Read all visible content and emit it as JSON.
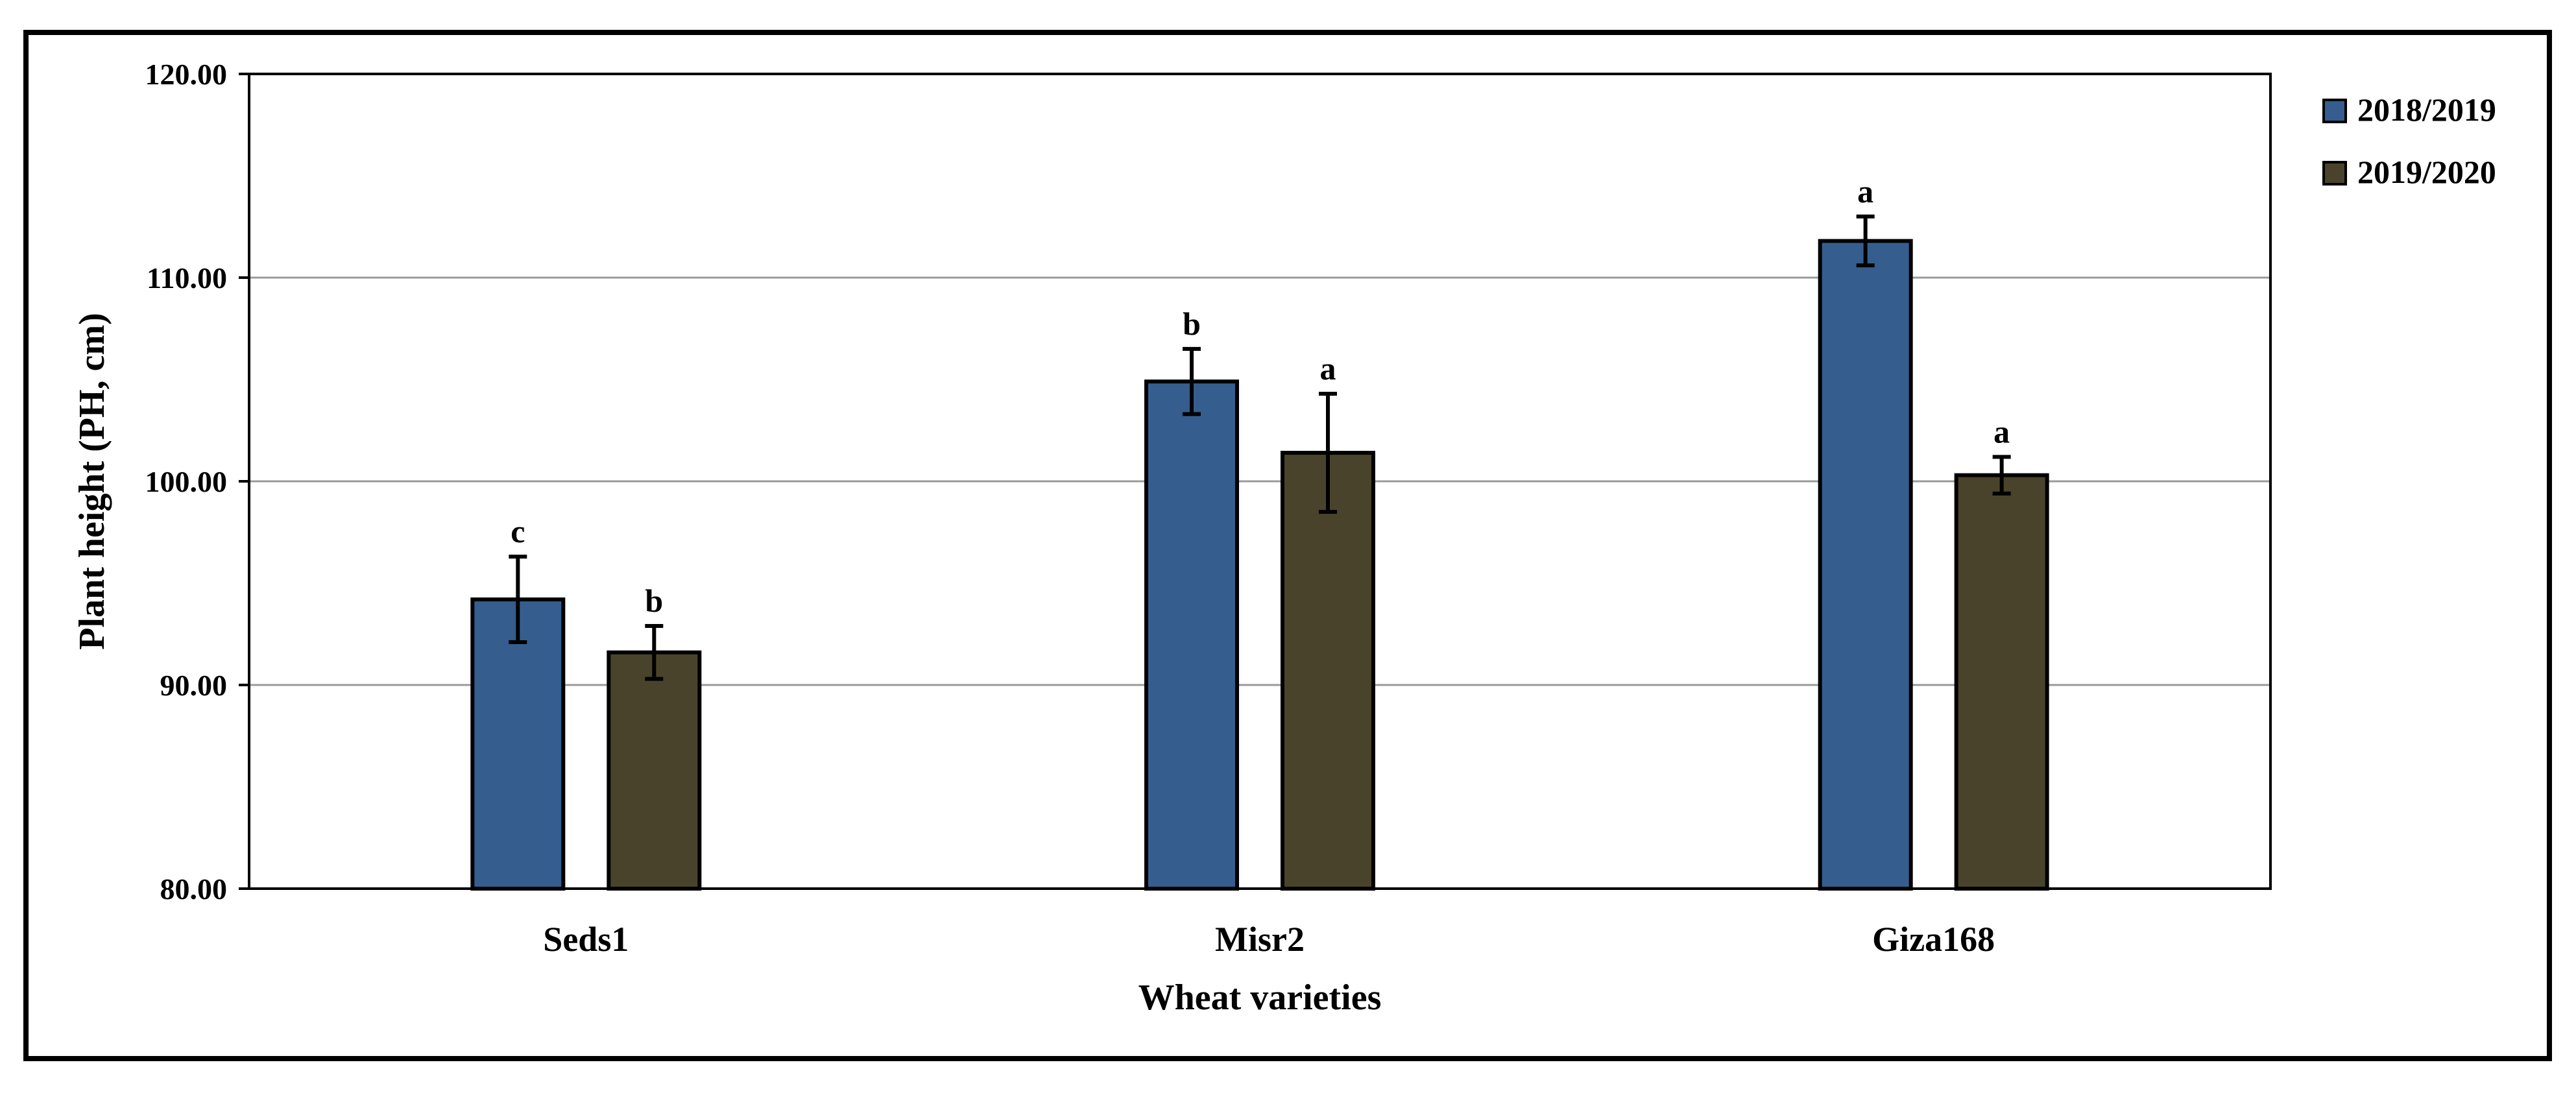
{
  "chart_data": {
    "type": "bar",
    "title": "",
    "xlabel": "Wheat varieties",
    "ylabel": "Plant height (PH, cm)",
    "ylim": [
      80,
      120
    ],
    "yticks": [
      80,
      90,
      100,
      110,
      120
    ],
    "ytick_labels": [
      "80.00",
      "90.00",
      "100.00",
      "110.00",
      "120.00"
    ],
    "grid": true,
    "legend_position": "right",
    "categories": [
      "Seds1",
      "Misr2",
      "Giza168"
    ],
    "series": [
      {
        "name": "2018/2019",
        "color": "#355E8F",
        "values": [
          94.2,
          104.9,
          111.8
        ],
        "errors": [
          2.1,
          1.6,
          1.2
        ],
        "labels": [
          "c",
          "b",
          "a"
        ]
      },
      {
        "name": "2019/2020",
        "color": "#4A432B",
        "values": [
          91.6,
          101.4,
          100.3
        ],
        "errors": [
          1.3,
          2.9,
          0.9
        ],
        "labels": [
          "b",
          "a",
          "a"
        ]
      }
    ]
  }
}
